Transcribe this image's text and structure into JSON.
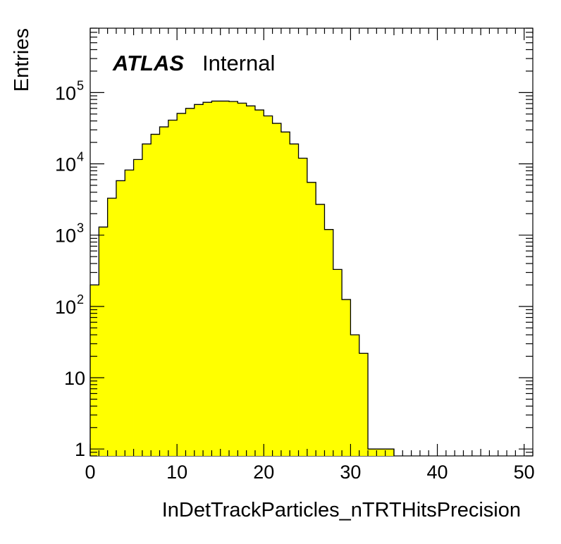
{
  "chart_data": {
    "type": "bar",
    "title": "",
    "label_bold": "ATLAS",
    "label_status": "Internal",
    "xlabel": "InDetTrackParticles_nTRTHitsPrecision",
    "ylabel": "Entries",
    "xlim": [
      0,
      51
    ],
    "ylim_log": [
      0.8,
      800000
    ],
    "y_log_scale": true,
    "x_ticks": [
      "0",
      "10",
      "20",
      "30",
      "40",
      "50"
    ],
    "y_ticks": [
      {
        "value": 1,
        "label": "1"
      },
      {
        "value": 10,
        "label": "10"
      },
      {
        "value": 100,
        "label": "10",
        "exp": "2"
      },
      {
        "value": 1000,
        "label": "10",
        "exp": "3"
      },
      {
        "value": 10000,
        "label": "10",
        "exp": "4"
      },
      {
        "value": 100000,
        "label": "10",
        "exp": "5"
      }
    ],
    "bin_width": 1,
    "bin_start": 0,
    "values": [
      200,
      1300,
      3300,
      5800,
      8200,
      11500,
      19000,
      26000,
      33000,
      41000,
      51000,
      60000,
      68000,
      73000,
      76000,
      76000,
      75000,
      71000,
      65000,
      57000,
      47000,
      37000,
      28000,
      19000,
      12000,
      5500,
      2700,
      1200,
      330,
      125,
      40,
      22,
      1,
      1,
      1
    ],
    "fill_color": "#ffff00",
    "line_color": "#000000",
    "grid": false,
    "legend": "none"
  }
}
